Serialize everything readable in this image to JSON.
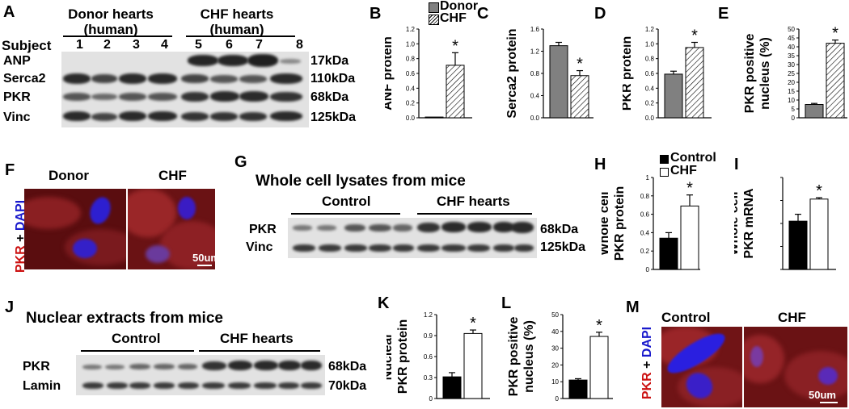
{
  "panels": {
    "A": {
      "label": "A",
      "group_headers": [
        "Donor hearts\n(human)",
        "CHF hearts\n(human)"
      ],
      "subject_label": "Subject",
      "subjects": [
        "1",
        "2",
        "3",
        "4",
        "5",
        "6",
        "7",
        "8"
      ],
      "proteins": [
        "ANP",
        "Serca2",
        "PKR",
        "Vinc"
      ],
      "kdas": [
        "17kDa",
        "110kDa",
        "68kDa",
        "125kDa"
      ]
    },
    "F": {
      "label": "F",
      "stain_prefix": "PKR",
      "stain_plus": " + ",
      "stain_suffix": "DAPI",
      "left": "Donor",
      "right": "CHF",
      "scale": "50um"
    },
    "G": {
      "label": "G",
      "title": "Whole cell lysates from mice",
      "groups": [
        "Control",
        "CHF hearts"
      ],
      "proteins": [
        "PKR",
        "Vinc"
      ],
      "kdas": [
        "68kDa",
        "125kDa"
      ]
    },
    "J": {
      "label": "J",
      "title": "Nuclear extracts from mice",
      "groups": [
        "Control",
        "CHF hearts"
      ],
      "proteins": [
        "PKR",
        "Lamin"
      ],
      "kdas": [
        "68kDa",
        "70kDa"
      ]
    },
    "M": {
      "label": "M",
      "stain_prefix": "PKR",
      "stain_plus": " + ",
      "stain_suffix": "DAPI",
      "left": "Control",
      "right": "CHF",
      "scale": "50um"
    }
  },
  "legends": {
    "top": [
      "Donor",
      "CHF"
    ],
    "mid": [
      "Control",
      "CHF"
    ]
  },
  "colors": {
    "donor_bar": "#808080",
    "control_bar": "#000000",
    "pkr_red": "#cc1111",
    "dapi_blue": "#1a1acc"
  },
  "chart_data": [
    {
      "id": "B",
      "type": "bar",
      "ylabel": "ANF protein",
      "ylim": [
        0,
        1.2
      ],
      "yticks": [
        0,
        0.2,
        0.4,
        0.6,
        0.8,
        1.0,
        1.2
      ],
      "tick_labels": [
        "0.0",
        "0.2",
        "0.4",
        "0.6",
        "0.8",
        "1.0",
        "1.2"
      ],
      "categories": [
        "Donor",
        "CHF"
      ],
      "values": [
        0.01,
        0.71
      ],
      "errors": [
        0.0,
        0.17
      ],
      "significance": [
        "",
        "*"
      ]
    },
    {
      "id": "C",
      "type": "bar",
      "ylabel": "Serca2 protein",
      "ylim": [
        0,
        1.6
      ],
      "yticks": [
        0,
        0.4,
        0.8,
        1.2,
        1.6
      ],
      "tick_labels": [
        "0.0",
        "0.4",
        "0.8",
        "1.2",
        "1.6"
      ],
      "categories": [
        "Donor",
        "CHF"
      ],
      "values": [
        1.3,
        0.76
      ],
      "errors": [
        0.06,
        0.09
      ],
      "significance": [
        "",
        "*"
      ]
    },
    {
      "id": "D",
      "type": "bar",
      "ylabel": "PKR protein",
      "ylim": [
        0,
        1.2
      ],
      "yticks": [
        0,
        0.2,
        0.4,
        0.6,
        0.8,
        1.0,
        1.2
      ],
      "tick_labels": [
        "0.0",
        "0.2",
        "0.4",
        "0.6",
        "0.8",
        "1.0",
        "1.2"
      ],
      "categories": [
        "Donor",
        "CHF"
      ],
      "values": [
        0.59,
        0.95
      ],
      "errors": [
        0.04,
        0.07
      ],
      "significance": [
        "",
        "*"
      ]
    },
    {
      "id": "E",
      "type": "bar",
      "ylabel": "PKR positive\nnucleus (%)",
      "ylim": [
        0,
        50
      ],
      "yticks": [
        0,
        5,
        10,
        15,
        20,
        25,
        30,
        35,
        40,
        45,
        50
      ],
      "tick_labels": [
        "0",
        "5",
        "10",
        "15",
        "20",
        "25",
        "30",
        "35",
        "40",
        "45",
        "50"
      ],
      "categories": [
        "Donor",
        "CHF"
      ],
      "values": [
        7.5,
        42.0
      ],
      "errors": [
        0.6,
        1.8
      ],
      "significance": [
        "",
        "*"
      ]
    },
    {
      "id": "H",
      "type": "bar",
      "ylabel": "Whole cell\nPKR protein",
      "ylim": [
        0,
        1.0
      ],
      "yticks": [
        0,
        0.2,
        0.4,
        0.6,
        0.8,
        1.0
      ],
      "tick_labels": [
        "0",
        "0.2",
        "0.4",
        "0.6",
        "0.8",
        "1"
      ],
      "categories": [
        "Control",
        "CHF"
      ],
      "values": [
        0.34,
        0.69
      ],
      "errors": [
        0.06,
        0.12
      ],
      "significance": [
        "",
        "*"
      ]
    },
    {
      "id": "I",
      "type": "bar",
      "ylabel": "Whole cell\nPKR mRNA",
      "ylim": [
        0,
        2.0
      ],
      "yticks": [
        0,
        0.5,
        1.0,
        1.5,
        2.0
      ],
      "tick_labels": [
        "",
        "",
        "",
        "",
        ""
      ],
      "categories": [
        "Control",
        "CHF"
      ],
      "values": [
        1.05,
        1.53
      ],
      "errors": [
        0.15,
        0.03
      ],
      "significance": [
        "",
        "*"
      ]
    },
    {
      "id": "K",
      "type": "bar",
      "ylabel": "Nuclear\nPKR protein",
      "ylim": [
        0,
        1.2
      ],
      "yticks": [
        0,
        0.3,
        0.6,
        0.9,
        1.2
      ],
      "tick_labels": [
        "0",
        "0.3",
        "0.6",
        "0.9",
        "1.2"
      ],
      "categories": [
        "Control",
        "CHF"
      ],
      "values": [
        0.31,
        0.93
      ],
      "errors": [
        0.06,
        0.05
      ],
      "significance": [
        "",
        "*"
      ]
    },
    {
      "id": "L",
      "type": "bar",
      "ylabel": "PKR positive\nnucleus (%)",
      "ylim": [
        0,
        50
      ],
      "yticks": [
        0,
        10,
        20,
        30,
        40,
        50
      ],
      "tick_labels": [
        "0",
        "10",
        "20",
        "30",
        "40",
        "50"
      ],
      "categories": [
        "Control",
        "CHF"
      ],
      "values": [
        11.0,
        37.0
      ],
      "errors": [
        0.8,
        2.5
      ],
      "significance": [
        "",
        "*"
      ]
    }
  ]
}
